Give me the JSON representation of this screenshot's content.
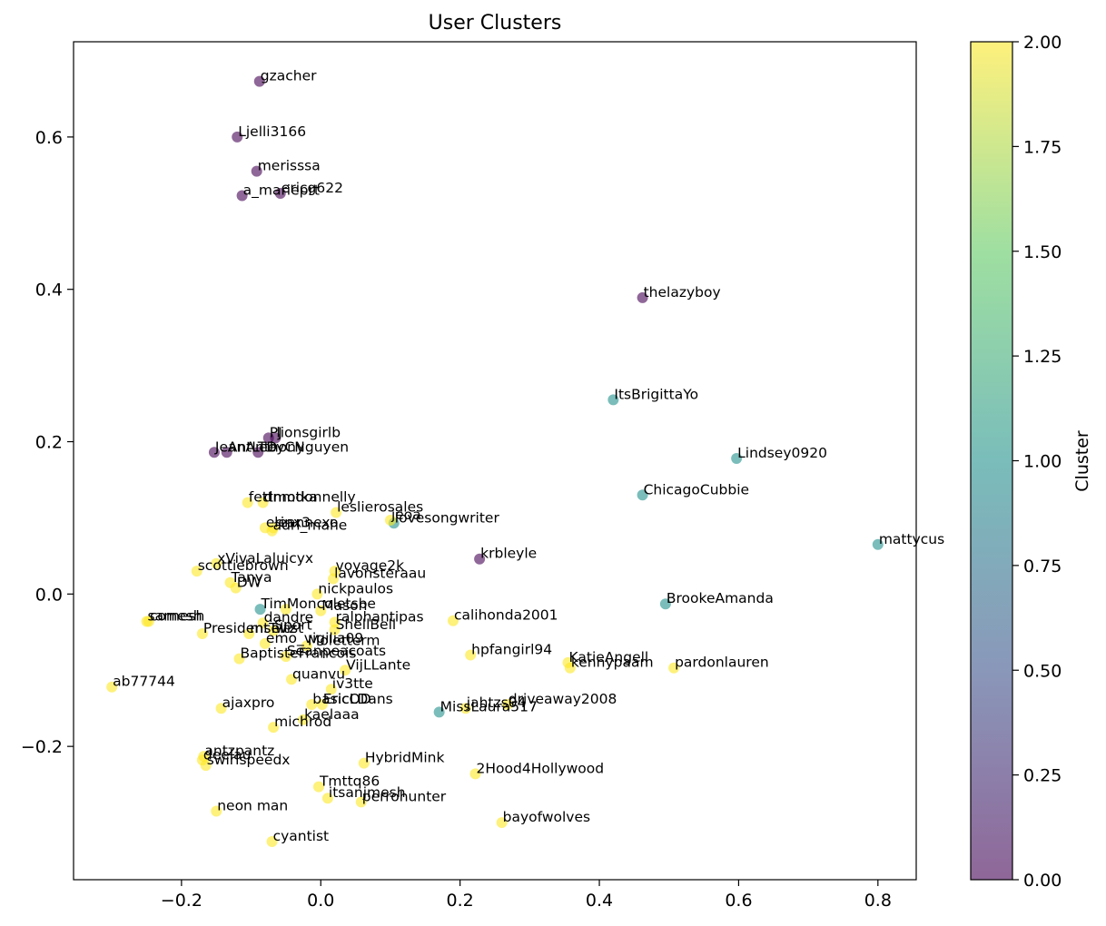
{
  "chart_data": {
    "type": "scatter",
    "title": "User Clusters",
    "xlabel": "",
    "ylabel": "",
    "xlim": [
      -0.355,
      0.855
    ],
    "ylim": [
      -0.375,
      0.725
    ],
    "x_ticks": [
      -0.2,
      0.0,
      0.2,
      0.4,
      0.6,
      0.8
    ],
    "x_tick_labels": [
      "−0.2",
      "0.0",
      "0.2",
      "0.4",
      "0.6",
      "0.8"
    ],
    "y_ticks": [
      -0.2,
      0.0,
      0.2,
      0.4,
      0.6
    ],
    "y_tick_labels": [
      "−0.2",
      "0.0",
      "0.2",
      "0.4",
      "0.6"
    ],
    "grid": false,
    "marker_alpha": 0.6,
    "colorbar": {
      "label": "Cluster",
      "range": [
        0,
        2
      ],
      "ticks": [
        0.0,
        0.25,
        0.5,
        0.75,
        1.0,
        1.25,
        1.5,
        1.75,
        2.0
      ],
      "tick_labels": [
        "0.00",
        "0.25",
        "0.50",
        "0.75",
        "1.00",
        "1.25",
        "1.50",
        "1.75",
        "2.00"
      ],
      "colormap": "viridis",
      "colors": [
        "#440154",
        "#3b528b",
        "#21918c",
        "#5ec962",
        "#fde725"
      ]
    },
    "points": [
      {
        "label": "gzacher",
        "x": -0.088,
        "y": 0.673,
        "cluster": 0
      },
      {
        "label": "Ljelli3166",
        "x": -0.12,
        "y": 0.6,
        "cluster": 0
      },
      {
        "label": "merisssa",
        "x": -0.092,
        "y": 0.555,
        "cluster": 0
      },
      {
        "label": "a_marieprt",
        "x": -0.113,
        "y": 0.523,
        "cluster": 0
      },
      {
        "label": "ericg622",
        "x": -0.058,
        "y": 0.526,
        "cluster": 0
      },
      {
        "label": "thelazyboy",
        "x": 0.462,
        "y": 0.389,
        "cluster": 0
      },
      {
        "label": "PJ",
        "x": -0.075,
        "y": 0.205,
        "cluster": 0
      },
      {
        "label": "lionsgirlb",
        "x": -0.065,
        "y": 0.205,
        "cluster": 0
      },
      {
        "label": "JeanAnthony",
        "x": -0.153,
        "y": 0.186,
        "cluster": 0
      },
      {
        "label": "AntLTD",
        "x": -0.135,
        "y": 0.186,
        "cluster": 0
      },
      {
        "label": "eeyCNguyen",
        "x": -0.09,
        "y": 0.186,
        "cluster": 0
      },
      {
        "label": "krbleyle",
        "x": 0.228,
        "y": 0.046,
        "cluster": 0
      },
      {
        "label": "ItsBrigittaYo",
        "x": 0.42,
        "y": 0.255,
        "cluster": 1
      },
      {
        "label": "Lindsey0920",
        "x": 0.597,
        "y": 0.178,
        "cluster": 1
      },
      {
        "label": "ChicagoCubbie",
        "x": 0.462,
        "y": 0.13,
        "cluster": 1
      },
      {
        "label": "mattycus",
        "x": 0.8,
        "y": 0.065,
        "cluster": 1
      },
      {
        "label": "BrookeAmanda",
        "x": 0.495,
        "y": -0.013,
        "cluster": 1
      },
      {
        "label": "MissLaura517",
        "x": 0.17,
        "y": -0.155,
        "cluster": 1
      },
      {
        "label": "lovesongwriter",
        "x": 0.105,
        "y": 0.093,
        "cluster": 1
      },
      {
        "label": "Tim",
        "x": -0.087,
        "y": -0.02,
        "cluster": 1
      },
      {
        "label": "fettmotka",
        "x": -0.105,
        "y": 0.12,
        "cluster": 2
      },
      {
        "label": "dnmdonnelly",
        "x": -0.083,
        "y": 0.12,
        "cluster": 2
      },
      {
        "label": "leslierosales",
        "x": 0.022,
        "y": 0.107,
        "cluster": 2
      },
      {
        "label": "jeoa",
        "x": 0.1,
        "y": 0.097,
        "cluster": 2
      },
      {
        "label": "erinx3",
        "x": -0.08,
        "y": 0.087,
        "cluster": 2
      },
      {
        "label": "leannexo",
        "x": -0.068,
        "y": 0.087,
        "cluster": 2
      },
      {
        "label": "adri_mahe",
        "x": -0.07,
        "y": 0.083,
        "cluster": 2
      },
      {
        "label": "xVivaLaluicyx",
        "x": -0.15,
        "y": 0.04,
        "cluster": 2
      },
      {
        "label": "voyage2k",
        "x": 0.02,
        "y": 0.03,
        "cluster": 2
      },
      {
        "label": "scottiebrown",
        "x": -0.178,
        "y": 0.03,
        "cluster": 2
      },
      {
        "label": "Tanya",
        "x": -0.13,
        "y": 0.015,
        "cluster": 2
      },
      {
        "label": "lavonsteraau",
        "x": 0.018,
        "y": 0.02,
        "cluster": 2
      },
      {
        "label": "DW",
        "x": -0.122,
        "y": 0.008,
        "cluster": 2
      },
      {
        "label": "nickpaulos",
        "x": -0.005,
        "y": 0.0,
        "cluster": 2
      },
      {
        "label": "Moncoletsbe",
        "x": -0.05,
        "y": -0.02,
        "cluster": 2
      },
      {
        "label": "Mason",
        "x": 0.0,
        "y": -0.022,
        "cluster": 2
      },
      {
        "label": "dandre",
        "x": -0.083,
        "y": -0.038,
        "cluster": 2
      },
      {
        "label": "ralphantipas",
        "x": 0.02,
        "y": -0.037,
        "cluster": 2
      },
      {
        "label": "ShellBell",
        "x": 0.02,
        "y": -0.047,
        "cluster": 2
      },
      {
        "label": "Sport",
        "x": -0.068,
        "y": -0.048,
        "cluster": 2
      },
      {
        "label": "samesh",
        "x": -0.25,
        "y": -0.036,
        "cluster": 2
      },
      {
        "label": "comesh",
        "x": -0.247,
        "y": -0.036,
        "cluster": 2
      },
      {
        "label": "calihonda2001",
        "x": 0.19,
        "y": -0.035,
        "cluster": 2
      },
      {
        "label": "PresidentTwist",
        "x": -0.17,
        "y": -0.052,
        "cluster": 2
      },
      {
        "label": "mseltz",
        "x": -0.103,
        "y": -0.052,
        "cluster": 2
      },
      {
        "label": "emo_vigilia09",
        "x": -0.08,
        "y": -0.065,
        "cluster": 2
      },
      {
        "label": "Moletterm",
        "x": -0.02,
        "y": -0.068,
        "cluster": 2
      },
      {
        "label": "BaptisteFrancois",
        "x": -0.117,
        "y": -0.085,
        "cluster": 2
      },
      {
        "label": "Seanpeacoats",
        "x": -0.05,
        "y": -0.082,
        "cluster": 2
      },
      {
        "label": "VijLLante",
        "x": 0.035,
        "y": -0.1,
        "cluster": 2
      },
      {
        "label": "hpfangirl94",
        "x": 0.215,
        "y": -0.08,
        "cluster": 2
      },
      {
        "label": "KatieAngell",
        "x": 0.355,
        "y": -0.09,
        "cluster": 2
      },
      {
        "label": "kennypaam",
        "x": 0.358,
        "y": -0.097,
        "cluster": 2
      },
      {
        "label": "pardonlauren",
        "x": 0.507,
        "y": -0.097,
        "cluster": 2
      },
      {
        "label": "quanvu",
        "x": -0.042,
        "y": -0.112,
        "cluster": 2
      },
      {
        "label": "iv3tte",
        "x": 0.015,
        "y": -0.125,
        "cluster": 2
      },
      {
        "label": "ab77744",
        "x": -0.3,
        "y": -0.122,
        "cluster": 2
      },
      {
        "label": "ajaxpro",
        "x": -0.143,
        "y": -0.15,
        "cluster": 2
      },
      {
        "label": "basicOD",
        "x": -0.013,
        "y": -0.145,
        "cluster": 2
      },
      {
        "label": "EricLDans",
        "x": 0.002,
        "y": -0.145,
        "cluster": 2
      },
      {
        "label": "driveaway2008",
        "x": 0.268,
        "y": -0.145,
        "cluster": 2
      },
      {
        "label": "jahtzs04",
        "x": 0.208,
        "y": -0.15,
        "cluster": 2
      },
      {
        "label": "kaelaaa",
        "x": -0.025,
        "y": -0.165,
        "cluster": 2
      },
      {
        "label": "michrod",
        "x": -0.068,
        "y": -0.175,
        "cluster": 2
      },
      {
        "label": "antzpantz",
        "x": -0.168,
        "y": -0.213,
        "cluster": 2
      },
      {
        "label": "deelau",
        "x": -0.17,
        "y": -0.218,
        "cluster": 2
      },
      {
        "label": "swirlspeedx",
        "x": -0.165,
        "y": -0.225,
        "cluster": 2
      },
      {
        "label": "HybridMink",
        "x": 0.062,
        "y": -0.222,
        "cluster": 2
      },
      {
        "label": "2Hood4Hollywood",
        "x": 0.222,
        "y": -0.236,
        "cluster": 2
      },
      {
        "label": "Tmttq86",
        "x": -0.003,
        "y": -0.253,
        "cluster": 2
      },
      {
        "label": "itsanjmesh",
        "x": 0.01,
        "y": -0.268,
        "cluster": 2
      },
      {
        "label": "perrohunter",
        "x": 0.058,
        "y": -0.273,
        "cluster": 2
      },
      {
        "label": "neon man",
        "x": -0.15,
        "y": -0.285,
        "cluster": 2
      },
      {
        "label": "bayofwolves",
        "x": 0.26,
        "y": -0.3,
        "cluster": 2
      },
      {
        "label": "cyantist",
        "x": -0.07,
        "y": -0.325,
        "cluster": 2
      }
    ]
  }
}
